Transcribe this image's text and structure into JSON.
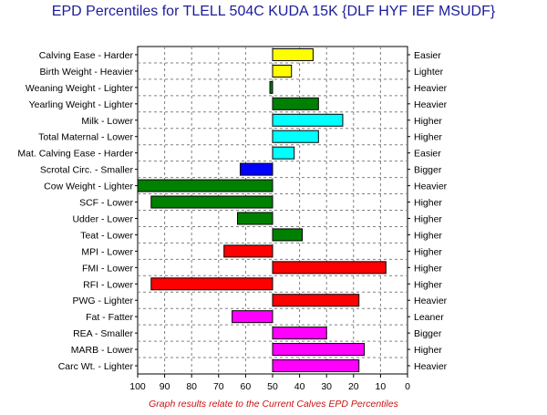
{
  "chart_data": {
    "type": "bar",
    "orientation": "horizontal",
    "title": "EPD Percentiles for TLELL 504C KUDA 15K {DLF HYF IEF MSUDF}",
    "footnote": "Graph results relate to the Current Calves EPD Percentiles",
    "xlim": [
      100,
      0
    ],
    "baseline": 50,
    "xticks": [
      "100",
      "90",
      "80",
      "70",
      "60",
      "50",
      "40",
      "30",
      "20",
      "10",
      "0"
    ],
    "grid": true,
    "traits": [
      {
        "left_label": "Calving Ease - Harder",
        "right_label": "Easier",
        "value": 35,
        "color": "#ffff00"
      },
      {
        "left_label": "Birth Weight - Heavier",
        "right_label": "Lighter",
        "value": 43,
        "color": "#ffff00"
      },
      {
        "left_label": "Weaning Weight - Lighter",
        "right_label": "Heavier",
        "value": 51,
        "color": "#008000"
      },
      {
        "left_label": "Yearling Weight - Lighter",
        "right_label": "Heavier",
        "value": 33,
        "color": "#008000"
      },
      {
        "left_label": "Milk - Lower",
        "right_label": "Higher",
        "value": 24,
        "color": "#00ffff"
      },
      {
        "left_label": "Total Maternal - Lower",
        "right_label": "Higher",
        "value": 33,
        "color": "#00ffff"
      },
      {
        "left_label": "Mat. Calving Ease - Harder",
        "right_label": "Easier",
        "value": 42,
        "color": "#00ffff"
      },
      {
        "left_label": "Scrotal Circ. - Smaller",
        "right_label": "Bigger",
        "value": 62,
        "color": "#0000ff"
      },
      {
        "left_label": "Cow Weight - Lighter",
        "right_label": "Heavier",
        "value": 100,
        "color": "#008000"
      },
      {
        "left_label": "SCF - Lower",
        "right_label": "Higher",
        "value": 95,
        "color": "#008000"
      },
      {
        "left_label": "Udder - Lower",
        "right_label": "Higher",
        "value": 63,
        "color": "#008000"
      },
      {
        "left_label": "Teat - Lower",
        "right_label": "Higher",
        "value": 39,
        "color": "#008000"
      },
      {
        "left_label": "MPI - Lower",
        "right_label": "Higher",
        "value": 68,
        "color": "#ff0000"
      },
      {
        "left_label": "FMI - Lower",
        "right_label": "Higher",
        "value": 8,
        "color": "#ff0000"
      },
      {
        "left_label": "RFI - Lower",
        "right_label": "Higher",
        "value": 95,
        "color": "#ff0000"
      },
      {
        "left_label": "PWG - Lighter",
        "right_label": "Heavier",
        "value": 18,
        "color": "#ff0000"
      },
      {
        "left_label": "Fat - Fatter",
        "right_label": "Leaner",
        "value": 65,
        "color": "#ff00ff"
      },
      {
        "left_label": "REA - Smaller",
        "right_label": "Bigger",
        "value": 30,
        "color": "#ff00ff"
      },
      {
        "left_label": "MARB - Lower",
        "right_label": "Higher",
        "value": 16,
        "color": "#ff00ff"
      },
      {
        "left_label": "Carc Wt. - Lighter",
        "right_label": "Heavier",
        "value": 18,
        "color": "#ff00ff"
      }
    ]
  }
}
